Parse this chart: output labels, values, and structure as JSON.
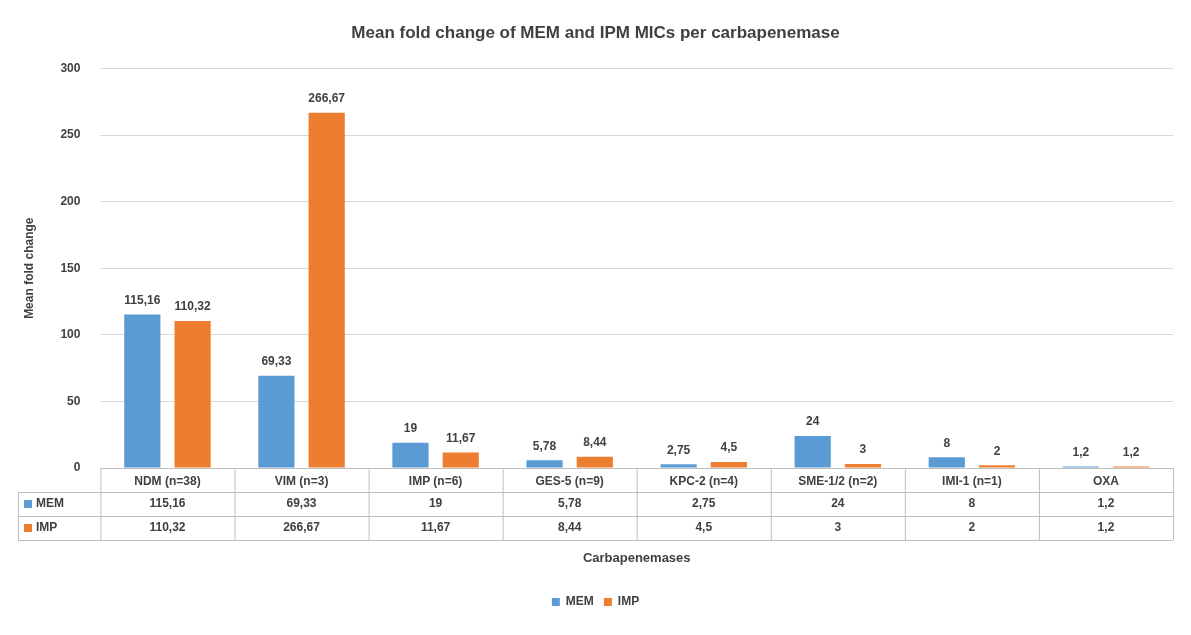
{
  "chart_data": {
    "type": "bar",
    "title": "Mean fold change of MEM and IPM MICs per carbapenemase",
    "xlabel": "Carbapenemases",
    "ylabel": "Mean fold change",
    "categories": [
      "NDM (n=38)",
      "VIM (n=3)",
      "IMP (n=6)",
      "GES-5 (n=9)",
      "KPC-2 (n=4)",
      "SME-1/2 (n=2)",
      "IMI-1 (n=1)",
      "OXA"
    ],
    "series": [
      {
        "name": "MEM",
        "color": "#5b9bd5",
        "values": [
          115.16,
          69.33,
          19,
          5.78,
          2.75,
          24,
          8,
          1.2
        ],
        "value_labels": [
          "115,16",
          "69,33",
          "19",
          "5,78",
          "2,75",
          "24",
          "8",
          "1,2"
        ]
      },
      {
        "name": "IMP",
        "color": "#ed7d31",
        "values": [
          110.32,
          266.67,
          11.67,
          8.44,
          4.5,
          3,
          2,
          1.2
        ],
        "value_labels": [
          "110,32",
          "266,67",
          "11,67",
          "8,44",
          "4,5",
          "3",
          "2",
          "1,2"
        ]
      }
    ],
    "ylim": [
      0,
      300
    ],
    "yticks": [
      0,
      50,
      100,
      150,
      200,
      250,
      300
    ],
    "grid": "y",
    "legend": "bottom"
  }
}
